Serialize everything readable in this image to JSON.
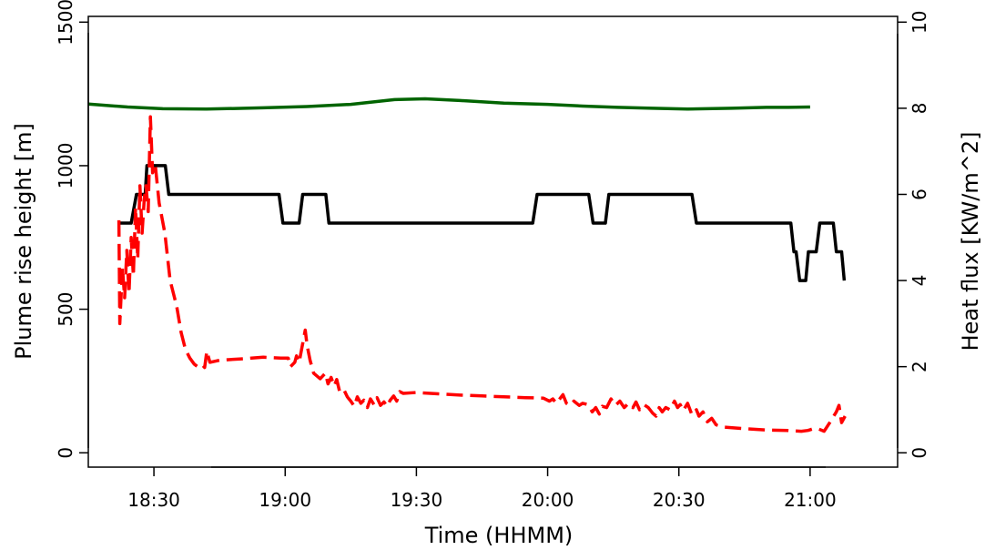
{
  "chart_data": {
    "type": "line",
    "xlabel": "Time (HHMM)",
    "ylabel_left": "Plume rise height [m]",
    "ylabel_right": "Heat flux [KW/m^2]",
    "xlim": [
      1095,
      1280
    ],
    "ylim_left": [
      -50,
      1520
    ],
    "ylim_right": [
      -0.333,
      10.133
    ],
    "x_ticks": [
      {
        "value": 1110,
        "label": "18:30"
      },
      {
        "value": 1140,
        "label": "19:00"
      },
      {
        "value": 1170,
        "label": "19:30"
      },
      {
        "value": 1200,
        "label": "20:00"
      },
      {
        "value": 1230,
        "label": "20:30"
      },
      {
        "value": 1260,
        "label": "21:00"
      }
    ],
    "y_ticks_left": [
      {
        "value": 0,
        "label": "0"
      },
      {
        "value": 500,
        "label": "500"
      },
      {
        "value": 1000,
        "label": "1000"
      },
      {
        "value": 1500,
        "label": "1500"
      }
    ],
    "y_ticks_right": [
      {
        "value": 0,
        "label": "0"
      },
      {
        "value": 2,
        "label": "2"
      },
      {
        "value": 4,
        "label": "4"
      },
      {
        "value": 6,
        "label": "6"
      },
      {
        "value": 8,
        "label": "8"
      },
      {
        "value": 10,
        "label": "10"
      }
    ],
    "grid": false,
    "legend": "none",
    "series": [
      {
        "axis": "right",
        "color": "#006400",
        "dash": "solid",
        "points": [
          [
            1095,
            8.1
          ],
          [
            1104,
            8.03
          ],
          [
            1112,
            7.99
          ],
          [
            1122,
            7.98
          ],
          [
            1135,
            8.01
          ],
          [
            1145,
            8.04
          ],
          [
            1155,
            8.09
          ],
          [
            1165,
            8.2
          ],
          [
            1172,
            8.22
          ],
          [
            1180,
            8.18
          ],
          [
            1190,
            8.12
          ],
          [
            1200,
            8.09
          ],
          [
            1208,
            8.05
          ],
          [
            1216,
            8.02
          ],
          [
            1224,
            8.0
          ],
          [
            1232,
            7.98
          ],
          [
            1242,
            8.0
          ],
          [
            1250,
            8.02
          ],
          [
            1255,
            8.02
          ],
          [
            1260,
            8.03
          ]
        ]
      },
      {
        "axis": "left",
        "color": "#000000",
        "dash": "solid",
        "points": [
          [
            1102.0,
            800
          ],
          [
            1104.8,
            800
          ],
          [
            1106.0,
            900
          ],
          [
            1108.0,
            900
          ],
          [
            1108.4,
            1000
          ],
          [
            1112.6,
            1000
          ],
          [
            1113.4,
            900
          ],
          [
            1138.6,
            900
          ],
          [
            1139.5,
            800
          ],
          [
            1143.2,
            800
          ],
          [
            1144.0,
            900
          ],
          [
            1149.3,
            900
          ],
          [
            1150.0,
            800
          ],
          [
            1196.6,
            800
          ],
          [
            1197.6,
            900
          ],
          [
            1209.4,
            900
          ],
          [
            1210.4,
            800
          ],
          [
            1213.2,
            800
          ],
          [
            1214.0,
            900
          ],
          [
            1233.0,
            900
          ],
          [
            1234.0,
            800
          ],
          [
            1255.6,
            800
          ],
          [
            1256.3,
            700
          ],
          [
            1256.8,
            700
          ],
          [
            1257.6,
            600
          ],
          [
            1259.0,
            600
          ],
          [
            1259.6,
            700
          ],
          [
            1261.4,
            700
          ],
          [
            1262.2,
            800
          ],
          [
            1265.3,
            800
          ],
          [
            1266.0,
            700
          ],
          [
            1267.2,
            700
          ],
          [
            1267.8,
            600
          ]
        ]
      },
      {
        "axis": "right",
        "color": "#ff0000",
        "dash": "dashed",
        "points": [
          [
            1102.0,
            5.4
          ],
          [
            1102.2,
            3.0
          ],
          [
            1102.8,
            4.3
          ],
          [
            1103.3,
            3.6
          ],
          [
            1103.8,
            4.7
          ],
          [
            1104.3,
            3.7
          ],
          [
            1104.8,
            5.0
          ],
          [
            1105.3,
            4.1
          ],
          [
            1105.8,
            5.7
          ],
          [
            1106.3,
            4.5
          ],
          [
            1106.8,
            6.2
          ],
          [
            1107.3,
            5.1
          ],
          [
            1107.8,
            5.9
          ],
          [
            1108.2,
            6.2
          ],
          [
            1108.7,
            5.6
          ],
          [
            1109.2,
            7.8
          ],
          [
            1109.7,
            6.5
          ],
          [
            1110.3,
            6.7
          ],
          [
            1111.2,
            5.8
          ],
          [
            1112.5,
            5.1
          ],
          [
            1113.7,
            4.0
          ],
          [
            1115.2,
            3.4
          ],
          [
            1116.2,
            2.8
          ],
          [
            1117.2,
            2.4
          ],
          [
            1118.2,
            2.2
          ],
          [
            1119.2,
            2.06
          ],
          [
            1120.0,
            2.0
          ],
          [
            1121.0,
            2.05
          ],
          [
            1121.6,
            1.98
          ],
          [
            1122.1,
            2.36
          ],
          [
            1122.8,
            2.1
          ],
          [
            1125.0,
            2.15
          ],
          [
            1130.0,
            2.18
          ],
          [
            1135.0,
            2.22
          ],
          [
            1139.0,
            2.2
          ],
          [
            1140.7,
            2.2
          ],
          [
            1141.2,
            2.0
          ],
          [
            1142.2,
            2.1
          ],
          [
            1142.6,
            2.25
          ],
          [
            1143.2,
            2.1
          ],
          [
            1144.6,
            2.85
          ],
          [
            1145.0,
            2.5
          ],
          [
            1145.7,
            2.15
          ],
          [
            1146.5,
            1.85
          ],
          [
            1148.0,
            1.72
          ],
          [
            1149.2,
            1.85
          ],
          [
            1149.8,
            1.6
          ],
          [
            1150.5,
            1.75
          ],
          [
            1151.2,
            1.55
          ],
          [
            1151.8,
            1.7
          ],
          [
            1152.5,
            1.4
          ],
          [
            1153.5,
            1.45
          ],
          [
            1154.2,
            1.3
          ],
          [
            1155.0,
            1.2
          ],
          [
            1155.8,
            1.08
          ],
          [
            1156.5,
            1.3
          ],
          [
            1157.3,
            1.15
          ],
          [
            1158.0,
            1.22
          ],
          [
            1158.8,
            1.05
          ],
          [
            1159.5,
            1.25
          ],
          [
            1160.3,
            1.12
          ],
          [
            1161.0,
            1.28
          ],
          [
            1161.8,
            1.1
          ],
          [
            1162.6,
            1.18
          ],
          [
            1163.3,
            1.08
          ],
          [
            1164.0,
            1.22
          ],
          [
            1164.8,
            1.32
          ],
          [
            1165.5,
            1.2
          ],
          [
            1166.2,
            1.42
          ],
          [
            1167.0,
            1.38
          ],
          [
            1170.0,
            1.4
          ],
          [
            1175.0,
            1.37
          ],
          [
            1180.0,
            1.34
          ],
          [
            1185.0,
            1.32
          ],
          [
            1190.0,
            1.3
          ],
          [
            1195.0,
            1.28
          ],
          [
            1199.0,
            1.27
          ],
          [
            1200.4,
            1.2
          ],
          [
            1201.2,
            1.25
          ],
          [
            1202.0,
            1.15
          ],
          [
            1203.5,
            1.35
          ],
          [
            1204.3,
            1.15
          ],
          [
            1205.0,
            1.1
          ],
          [
            1206.0,
            1.2
          ],
          [
            1207.2,
            1.1
          ],
          [
            1208.0,
            1.15
          ],
          [
            1209.2,
            1.12
          ],
          [
            1210.2,
            0.95
          ],
          [
            1211.0,
            1.05
          ],
          [
            1211.8,
            0.9
          ],
          [
            1212.5,
            1.08
          ],
          [
            1213.5,
            1.05
          ],
          [
            1214.5,
            1.25
          ],
          [
            1215.5,
            1.1
          ],
          [
            1216.5,
            1.2
          ],
          [
            1217.5,
            1.05
          ],
          [
            1218.5,
            1.15
          ],
          [
            1219.5,
            1.05
          ],
          [
            1220.2,
            1.18
          ],
          [
            1221.0,
            1.0
          ],
          [
            1222.0,
            1.12
          ],
          [
            1223.0,
            1.05
          ],
          [
            1224.0,
            0.92
          ],
          [
            1224.8,
            0.85
          ],
          [
            1225.5,
            1.05
          ],
          [
            1226.2,
            0.95
          ],
          [
            1227.0,
            1.05
          ],
          [
            1228.0,
            1.0
          ],
          [
            1229.0,
            1.2
          ],
          [
            1229.7,
            1.05
          ],
          [
            1230.3,
            1.12
          ],
          [
            1231.0,
            0.98
          ],
          [
            1232.0,
            1.15
          ],
          [
            1233.0,
            0.88
          ],
          [
            1234.0,
            1.0
          ],
          [
            1234.6,
            0.85
          ],
          [
            1235.5,
            0.95
          ],
          [
            1236.5,
            0.72
          ],
          [
            1237.5,
            0.8
          ],
          [
            1238.5,
            0.65
          ],
          [
            1240.0,
            0.6
          ],
          [
            1245.0,
            0.56
          ],
          [
            1250.0,
            0.53
          ],
          [
            1255.0,
            0.52
          ],
          [
            1258.0,
            0.5
          ],
          [
            1259.5,
            0.52
          ],
          [
            1260.5,
            0.55
          ],
          [
            1262.0,
            0.55
          ],
          [
            1263.2,
            0.5
          ],
          [
            1264.5,
            0.7
          ],
          [
            1266.0,
            0.95
          ],
          [
            1266.6,
            1.1
          ],
          [
            1267.2,
            0.7
          ],
          [
            1268.0,
            0.85
          ]
        ]
      }
    ]
  }
}
